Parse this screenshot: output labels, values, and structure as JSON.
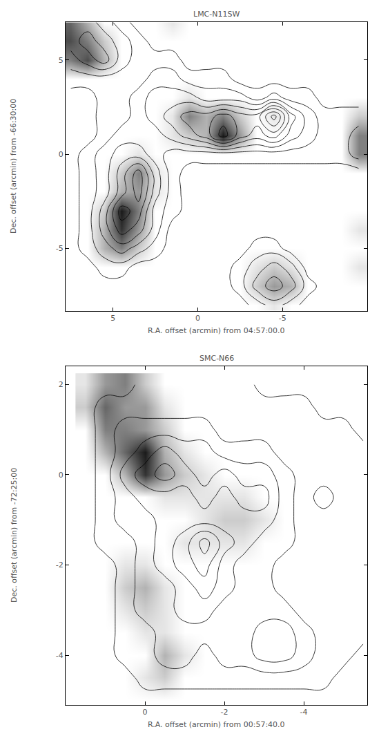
{
  "chart_data": [
    {
      "type": "contour",
      "title": "LMC-N11SW",
      "x_label": "R.A. offset (arcmin) from 04:57:00.0",
      "y_label": "Dec. offset (arcmin) from -66:30:00",
      "xlim": [
        7.8,
        -10
      ],
      "ylim": [
        -8.3,
        7
      ],
      "xticks": [
        5,
        0,
        -5
      ],
      "yticks": [
        -5,
        0,
        5
      ],
      "x": [
        7.5,
        6.5,
        5.5,
        4.5,
        3.5,
        2.5,
        1.5,
        0.5,
        -0.5,
        -1.5,
        -2.5,
        -3.5,
        -4.5,
        -5.5,
        -6.5,
        -7.5,
        -8.5,
        -9.5
      ],
      "y": [
        -8,
        -7,
        -6,
        -5,
        -4,
        -3,
        -2,
        -1,
        0,
        1,
        2,
        3,
        4,
        5,
        6,
        7
      ],
      "image_range": [
        0,
        10
      ],
      "image": [
        [
          0,
          0,
          0,
          0,
          0,
          0,
          0,
          0,
          0,
          0,
          0,
          0,
          1,
          0,
          0,
          0,
          0,
          0
        ],
        [
          0,
          0,
          0,
          0,
          0,
          0,
          0,
          0,
          0,
          0,
          0,
          2,
          4,
          3,
          0,
          0,
          0,
          0
        ],
        [
          0,
          0,
          0,
          0,
          0,
          0,
          0,
          0,
          0,
          0,
          0,
          1,
          2,
          1,
          0,
          0,
          0,
          1
        ],
        [
          0,
          0,
          3,
          5,
          2,
          0,
          0,
          0,
          0,
          0,
          0,
          0,
          0,
          0,
          0,
          0,
          0,
          0
        ],
        [
          0,
          0,
          3,
          8,
          4,
          0,
          0,
          0,
          0,
          0,
          0,
          0,
          0,
          0,
          0,
          0,
          0,
          1
        ],
        [
          0,
          0,
          2,
          9,
          5,
          0,
          0,
          0,
          0,
          0,
          0,
          0,
          0,
          0,
          0,
          0,
          0,
          0
        ],
        [
          0,
          0,
          0,
          3,
          4,
          1,
          0,
          0,
          0,
          0,
          0,
          0,
          0,
          0,
          0,
          0,
          0,
          0
        ],
        [
          0,
          0,
          0,
          2,
          5,
          1,
          0,
          0,
          0,
          0,
          0,
          0,
          0,
          0,
          0,
          0,
          0,
          0
        ],
        [
          0,
          0,
          0,
          0,
          1,
          0,
          0,
          0,
          0,
          0,
          0,
          0,
          0,
          0,
          0,
          0,
          0,
          5
        ],
        [
          0,
          0,
          0,
          0,
          0,
          0,
          1,
          2,
          3,
          9,
          4,
          0,
          0,
          0,
          0,
          0,
          0,
          5
        ],
        [
          0,
          0,
          0,
          0,
          0,
          0,
          1,
          5,
          3,
          5,
          2,
          0,
          1,
          0,
          0,
          0,
          0,
          2
        ],
        [
          0,
          0,
          0,
          0,
          0,
          0,
          0,
          1,
          0,
          0,
          0,
          0,
          0,
          0,
          0,
          0,
          0,
          0
        ],
        [
          0,
          0,
          0,
          0,
          0,
          0,
          0,
          0,
          0,
          0,
          0,
          0,
          0,
          0,
          0,
          0,
          0,
          0
        ],
        [
          5,
          7,
          3,
          0,
          0,
          0,
          0,
          0,
          0,
          0,
          0,
          0,
          0,
          0,
          0,
          0,
          0,
          0
        ],
        [
          7,
          5,
          2,
          0,
          0,
          0,
          0,
          0,
          0,
          0,
          0,
          0,
          0,
          0,
          0,
          0,
          0,
          0
        ],
        [
          6,
          3,
          0,
          0,
          0,
          0,
          1,
          0,
          0,
          0,
          0,
          0,
          0,
          0,
          0,
          0,
          0,
          0
        ]
      ],
      "contour_levels": [
        0.5,
        1.5,
        2.5,
        3.5,
        4.5,
        5.5,
        6.5,
        7.5
      ],
      "contours": [
        [
          0,
          0,
          0,
          0,
          0,
          0,
          0,
          0,
          0,
          0,
          0,
          1,
          2,
          1,
          0,
          0,
          0,
          0
        ],
        [
          0,
          0,
          0,
          0,
          0,
          0,
          0,
          0,
          0,
          0,
          1,
          3,
          4,
          3,
          1,
          0,
          0,
          0
        ],
        [
          0,
          0,
          1,
          1,
          0,
          0,
          0,
          0,
          0,
          0,
          1,
          2,
          3,
          2,
          0,
          0,
          0,
          0
        ],
        [
          0,
          1,
          2,
          3,
          2,
          1,
          0,
          0,
          0,
          0,
          0,
          1,
          1,
          0,
          0,
          0,
          0,
          0
        ],
        [
          0,
          1,
          3,
          5,
          4,
          2,
          0,
          0,
          0,
          0,
          0,
          0,
          0,
          0,
          0,
          0,
          0,
          0
        ],
        [
          0,
          1,
          3,
          6,
          5,
          2,
          1,
          0,
          0,
          0,
          0,
          0,
          0,
          0,
          0,
          0,
          0,
          0
        ],
        [
          0,
          1,
          2,
          4,
          6,
          3,
          1,
          0,
          0,
          0,
          0,
          0,
          0,
          0,
          0,
          0,
          0,
          0
        ],
        [
          0,
          1,
          2,
          4,
          6,
          3,
          1,
          0,
          0,
          0,
          0,
          0,
          0,
          0,
          0,
          0,
          0,
          0
        ],
        [
          0,
          1,
          2,
          3,
          3,
          2,
          1,
          1,
          1,
          1,
          1,
          1,
          1,
          1,
          1,
          1,
          1,
          2
        ],
        [
          0,
          0,
          1,
          2,
          2,
          2,
          3,
          4,
          5,
          7,
          5,
          4,
          5,
          3,
          2,
          1,
          1,
          2
        ],
        [
          0,
          0,
          1,
          1,
          2,
          3,
          4,
          5,
          5,
          6,
          5,
          5,
          8,
          4,
          2,
          1,
          1,
          1
        ],
        [
          0,
          0,
          1,
          1,
          2,
          3,
          3,
          3,
          2,
          2,
          2,
          1,
          2,
          1,
          1,
          0,
          0,
          0
        ],
        [
          1,
          1,
          1,
          1,
          1,
          2,
          2,
          1,
          1,
          1,
          0,
          0,
          0,
          0,
          0,
          0,
          0,
          0
        ],
        [
          2,
          3,
          4,
          2,
          1,
          1,
          1,
          0,
          0,
          0,
          0,
          0,
          0,
          0,
          0,
          0,
          0,
          0
        ],
        [
          3,
          4,
          3,
          2,
          1,
          0,
          0,
          0,
          0,
          0,
          0,
          0,
          0,
          0,
          0,
          0,
          0,
          0
        ],
        [
          3,
          3,
          2,
          1,
          0,
          0,
          0,
          0,
          0,
          0,
          0,
          0,
          0,
          0,
          0,
          0,
          0,
          0
        ]
      ]
    },
    {
      "type": "contour",
      "title": "SMC-N66",
      "x_label": "R.A. offset (arcmin) from 00:57:40.0",
      "y_label": "Dec. offset (arcmin) from -72:25:00",
      "xlim": [
        2,
        -5.6
      ],
      "ylim": [
        -5.1,
        2.4
      ],
      "xticks": [
        0,
        -2,
        -4
      ],
      "yticks": [
        -4,
        -2,
        0,
        2
      ],
      "x": [
        1.5,
        1,
        0.5,
        0,
        -0.5,
        -1,
        -1.5,
        -2,
        -2.5,
        -3,
        -3.5,
        -4,
        -4.5,
        -5,
        -5.5
      ],
      "y": [
        -5,
        -4.5,
        -4,
        -3.5,
        -3,
        -2.5,
        -2,
        -1.5,
        -1,
        -0.5,
        0,
        0.5,
        1,
        1.5,
        2
      ],
      "image_range": [
        0,
        10
      ],
      "image": [
        [
          0,
          0,
          0,
          0,
          0,
          0,
          0,
          0,
          0,
          0,
          0,
          0,
          0,
          0,
          0
        ],
        [
          0,
          0,
          0,
          1,
          2,
          0,
          0,
          0,
          0,
          0,
          0,
          0,
          0,
          0,
          0
        ],
        [
          0,
          0,
          0,
          0,
          3,
          1,
          0,
          0,
          0,
          0,
          0,
          0,
          0,
          0,
          0
        ],
        [
          0,
          0,
          0,
          1,
          1,
          0,
          0,
          0,
          0,
          0,
          0,
          0,
          0,
          0,
          0
        ],
        [
          0,
          0,
          1,
          2,
          1,
          0,
          0,
          0,
          0,
          0,
          0,
          0,
          0,
          0,
          0
        ],
        [
          0,
          0,
          2,
          3,
          1,
          0,
          0,
          0,
          0,
          0,
          0,
          0,
          0,
          0,
          0
        ],
        [
          0,
          0,
          1,
          1,
          0,
          0,
          0,
          0,
          0,
          0,
          0,
          0,
          0,
          0,
          0
        ],
        [
          0,
          0,
          0,
          0,
          0,
          1,
          1,
          1,
          1,
          0,
          0,
          0,
          0,
          0,
          0
        ],
        [
          0,
          0,
          0,
          0,
          0,
          0,
          1,
          2,
          2,
          1,
          0,
          0,
          0,
          0,
          0
        ],
        [
          0,
          0,
          0,
          0,
          1,
          1,
          1,
          1,
          1,
          0,
          0,
          0,
          0,
          0,
          0
        ],
        [
          0,
          0,
          3,
          8,
          4,
          2,
          1,
          0,
          0,
          0,
          0,
          0,
          0,
          0,
          0
        ],
        [
          0,
          3,
          6,
          9,
          3,
          1,
          0,
          0,
          0,
          0,
          0,
          0,
          0,
          0,
          0
        ],
        [
          0,
          5,
          5,
          4,
          2,
          0,
          0,
          0,
          0,
          0,
          0,
          0,
          0,
          0,
          0
        ],
        [
          2,
          6,
          4,
          4,
          1,
          0,
          0,
          0,
          0,
          0,
          0,
          0,
          0,
          0,
          0
        ],
        [
          1,
          4,
          5,
          2,
          0,
          0,
          0,
          0,
          0,
          0,
          0,
          0,
          0,
          0,
          0
        ]
      ],
      "contour_levels": [
        0.5,
        1.5,
        2.5,
        3.5,
        4.5,
        5.5
      ],
      "contours": [
        [
          0,
          0,
          0,
          0,
          0,
          0,
          0,
          0,
          0,
          0,
          0,
          0,
          0,
          0,
          0
        ],
        [
          0,
          0,
          0,
          1,
          1,
          1,
          1,
          1,
          1,
          1,
          1,
          1,
          1,
          0,
          0
        ],
        [
          0,
          0,
          1,
          1,
          2,
          2,
          1,
          2,
          2,
          3,
          3,
          2,
          1,
          1,
          0
        ],
        [
          0,
          0,
          1,
          1,
          2,
          2,
          2,
          2,
          2,
          3,
          3,
          2,
          1,
          1,
          1
        ],
        [
          0,
          0,
          1,
          2,
          2,
          3,
          3,
          2,
          2,
          2,
          2,
          1,
          1,
          1,
          1
        ],
        [
          0,
          0,
          1,
          2,
          2,
          3,
          4,
          3,
          2,
          2,
          1,
          1,
          1,
          1,
          1
        ],
        [
          0,
          0,
          1,
          2,
          3,
          4,
          5,
          3,
          2,
          2,
          1,
          1,
          1,
          1,
          1
        ],
        [
          0,
          1,
          1,
          2,
          3,
          4,
          6,
          4,
          3,
          2,
          2,
          1,
          1,
          1,
          1
        ],
        [
          0,
          1,
          2,
          2,
          3,
          3,
          3,
          3,
          3,
          3,
          2,
          1,
          1,
          1,
          1
        ],
        [
          0,
          1,
          2,
          3,
          3,
          3,
          4,
          3,
          4,
          4,
          2,
          1,
          2,
          1,
          1
        ],
        [
          0,
          1,
          3,
          4,
          5,
          4,
          3,
          4,
          3,
          3,
          2,
          1,
          1,
          1,
          1
        ],
        [
          0,
          1,
          2,
          3,
          4,
          3,
          3,
          2,
          2,
          2,
          1,
          1,
          1,
          1,
          1
        ],
        [
          0,
          1,
          2,
          2,
          2,
          2,
          2,
          1,
          1,
          1,
          1,
          1,
          1,
          1,
          0
        ],
        [
          0,
          1,
          1,
          1,
          1,
          1,
          1,
          1,
          1,
          1,
          1,
          1,
          0,
          0,
          0
        ],
        [
          0,
          0,
          0,
          1,
          1,
          1,
          1,
          1,
          1,
          0,
          0,
          0,
          0,
          0,
          0
        ]
      ]
    }
  ]
}
